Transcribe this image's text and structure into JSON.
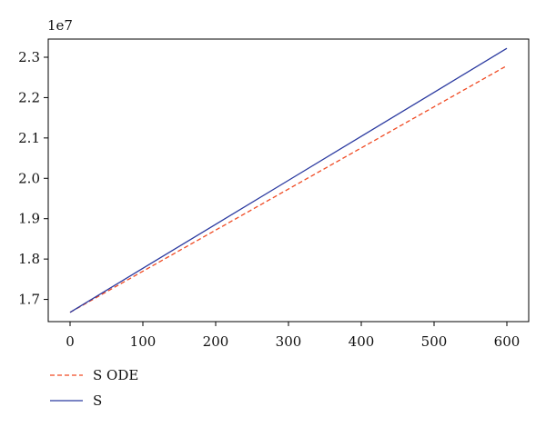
{
  "chart_data": {
    "type": "line",
    "title": "",
    "xlabel": "",
    "ylabel": "",
    "y_exponent_label": "1e7",
    "xlim": [
      -30,
      630
    ],
    "ylim": [
      1.645,
      2.345
    ],
    "x_ticks": [
      0,
      100,
      200,
      300,
      400,
      500,
      600
    ],
    "y_ticks": [
      1.7,
      1.8,
      1.9,
      2.0,
      2.1,
      2.2,
      2.3
    ],
    "grid": false,
    "legend_position": "bottom-left, below plot",
    "series": [
      {
        "name": "S ODE",
        "style": "dashed",
        "color": "#f04a23",
        "x": [
          0,
          100,
          200,
          300,
          400,
          500,
          600
        ],
        "y": [
          1.668,
          1.7698,
          1.8717,
          1.9735,
          2.0753,
          2.1772,
          2.279
        ]
      },
      {
        "name": "S",
        "style": "solid",
        "color": "#2b3aa0",
        "x": [
          0,
          100,
          200,
          300,
          400,
          500,
          600
        ],
        "y": [
          1.668,
          1.777,
          1.886,
          1.995,
          2.104,
          2.213,
          2.322
        ]
      }
    ]
  }
}
